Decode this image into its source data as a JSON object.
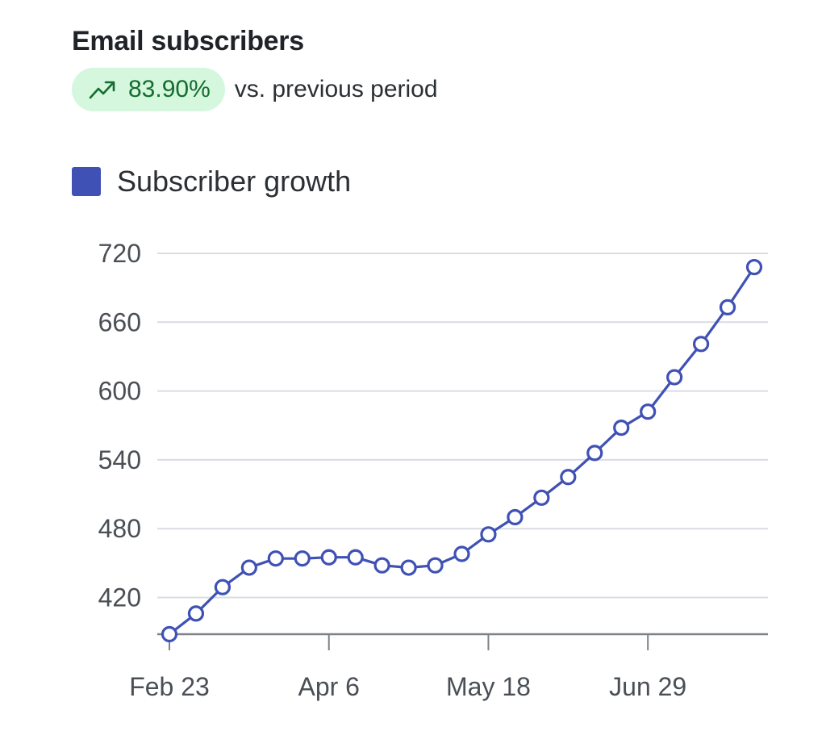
{
  "card": {
    "title": "Email subscribers",
    "change_pct": "83.90%",
    "change_suffix": "vs. previous period",
    "change_icon": "trending-up-icon",
    "badge_bg": "#d4f7de",
    "badge_fg": "#146c2e"
  },
  "chart_data": {
    "type": "line",
    "title": "Email subscribers",
    "xlabel": "",
    "ylabel": "",
    "x_tick_labels": [
      "Feb 23",
      "Apr 6",
      "May 18",
      "Jun 29"
    ],
    "x_tick_positions": [
      0,
      6,
      12,
      18
    ],
    "y_ticks": [
      420,
      480,
      540,
      600,
      660,
      720
    ],
    "ylim": [
      388,
      720
    ],
    "grid": true,
    "legend_position": "top-left",
    "series": [
      {
        "name": "Subscriber growth",
        "color": "#3f51b5",
        "marker": "hollow-circle",
        "values": [
          388,
          406,
          429,
          446,
          454,
          454,
          455,
          455,
          448,
          446,
          448,
          458,
          475,
          490,
          507,
          525,
          546,
          568,
          582,
          612,
          641,
          673,
          708
        ]
      }
    ]
  }
}
